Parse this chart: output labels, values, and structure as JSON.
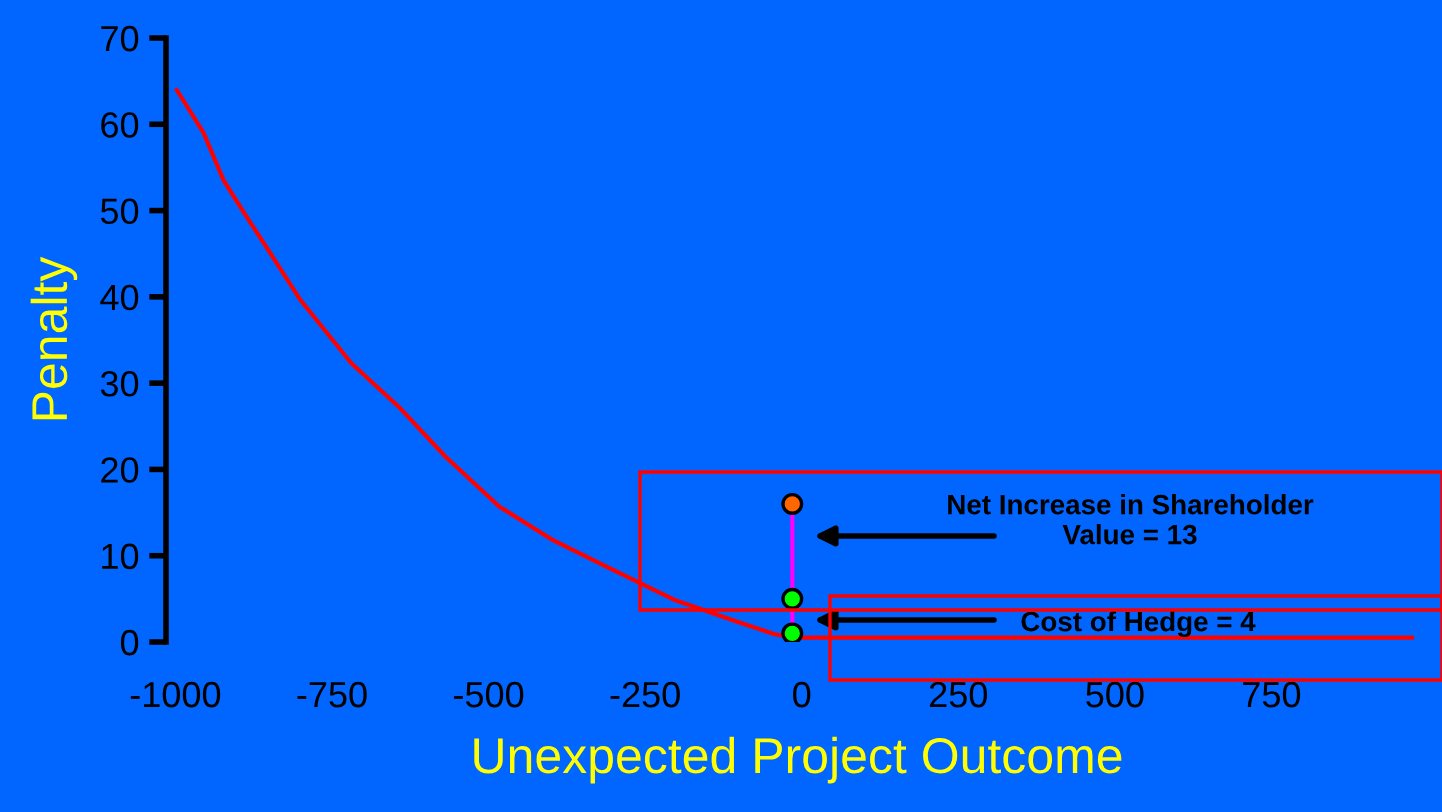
{
  "chart_data": {
    "type": "line",
    "xlabel": "Unexpected Project Outcome",
    "ylabel": "Penalty",
    "series": [
      {
        "color": "#ff0000",
        "x": [
          -998,
          -955,
          -923,
          -890,
          -848,
          -800,
          -719,
          -644,
          -569,
          -483,
          -397,
          -311,
          -204,
          -97,
          -43,
          -11,
          975
        ],
        "values": [
          64,
          59,
          53.5,
          49.7,
          45,
          39.6,
          32.3,
          27.3,
          21.5,
          15.7,
          11.8,
          8.7,
          4.9,
          2.2,
          0.9,
          0.5,
          0.5
        ]
      },
      {
        "type": "line",
        "color": "#ff00ff",
        "x": [
          -15,
          -15
        ],
        "values": [
          1,
          16
        ]
      },
      {
        "type": "scatter",
        "marker": "circle",
        "colors": [
          "#ff6600",
          "#00ff00",
          "#00ff00"
        ],
        "x": [
          -15,
          -15,
          -15
        ],
        "values": [
          16,
          5,
          1
        ]
      }
    ],
    "annotations": [
      "Net Increase in Shareholder\nValue = 13",
      "Cost of Hedge = 4"
    ],
    "xlim": [
      -1015,
      1000
    ],
    "ylim": [
      0,
      70
    ],
    "xticks": [
      -1000,
      -750,
      -500,
      -250,
      0,
      250,
      500,
      750
    ],
    "yticks": [
      0,
      10,
      20,
      30,
      40,
      50,
      60,
      70
    ],
    "grid": false,
    "legend": false,
    "tick_labels": true
  }
}
